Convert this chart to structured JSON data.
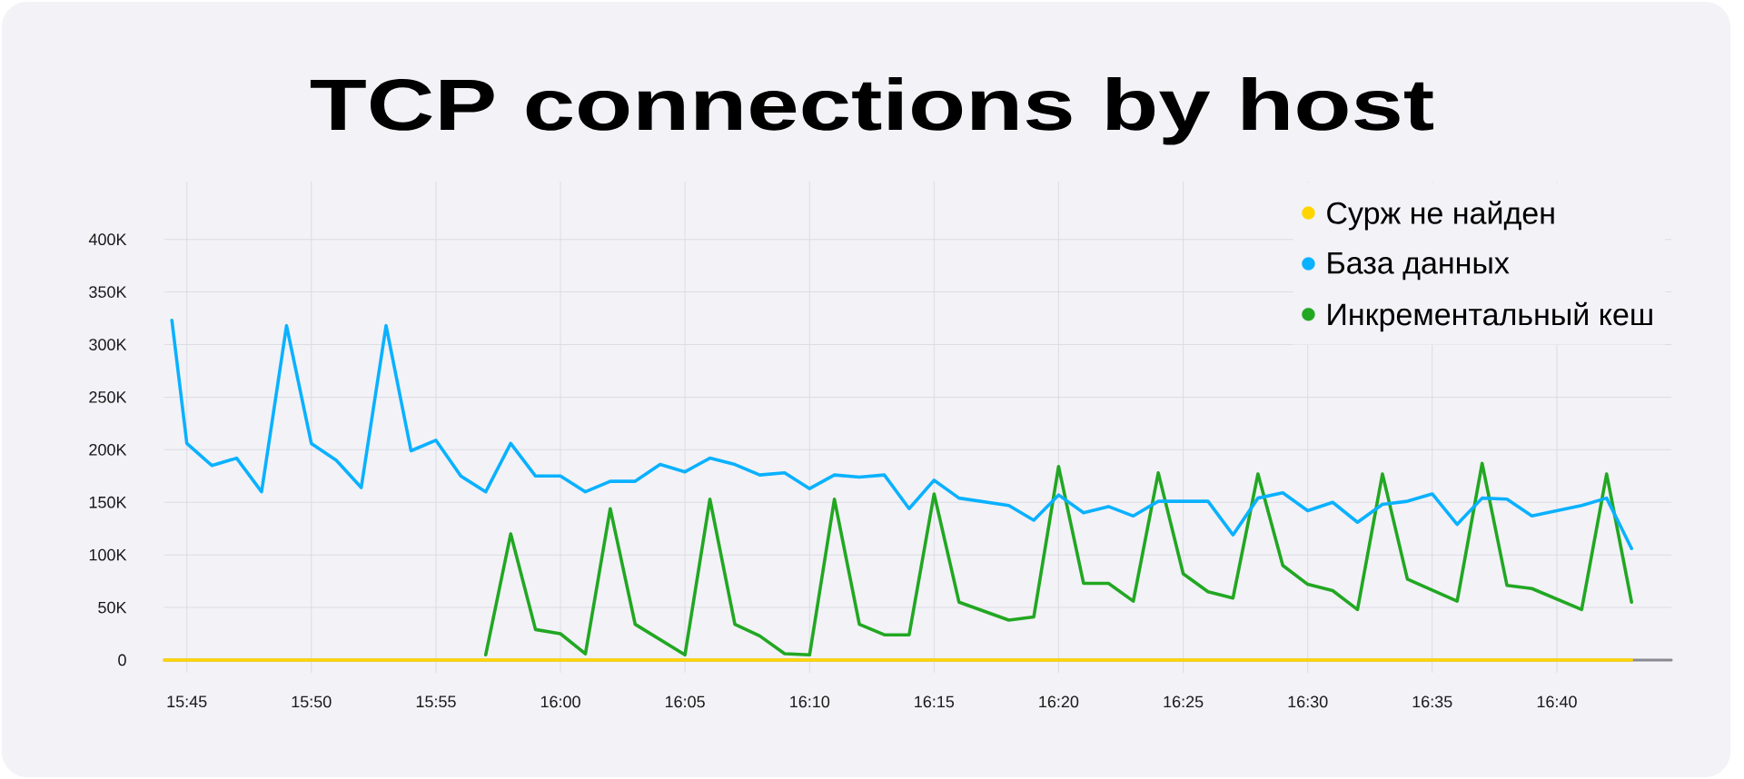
{
  "chart_data": {
    "type": "line",
    "title": "TCP connections by host",
    "series": [
      {
        "name": "Сурж не найден",
        "color": "#ffd500",
        "x": [
          15.735,
          16.7167
        ],
        "values": [
          0,
          0
        ]
      },
      {
        "name": "База данных",
        "color": "#0ab1ff",
        "x": [
          15.74,
          15.75,
          15.7667,
          15.7833,
          15.8,
          15.8167,
          15.8333,
          15.85,
          15.8667,
          15.8833,
          15.9,
          15.9167,
          15.9333,
          15.95,
          15.9667,
          15.9833,
          16,
          16.0167,
          16.0333,
          16.05,
          16.0667,
          16.0833,
          16.1,
          16.1167,
          16.1333,
          16.15,
          16.1667,
          16.1833,
          16.2,
          16.2167,
          16.2333,
          16.25,
          16.2667,
          16.3,
          16.3167,
          16.3333,
          16.35,
          16.3667,
          16.3833,
          16.4,
          16.4167,
          16.4333,
          16.45,
          16.4667,
          16.4833,
          16.5,
          16.5167,
          16.5333,
          16.55,
          16.5667,
          16.5833,
          16.6,
          16.6167,
          16.6333,
          16.65,
          16.6833,
          16.7,
          16.7167
        ],
        "values": [
          323000,
          206000,
          185000,
          192000,
          160000,
          318000,
          206000,
          190000,
          164000,
          318000,
          199000,
          209000,
          175000,
          160000,
          206000,
          175000,
          175000,
          160000,
          170000,
          170000,
          186000,
          179000,
          192000,
          186000,
          176000,
          178000,
          163000,
          176000,
          174000,
          176000,
          144000,
          171000,
          154000,
          147000,
          133000,
          157000,
          140000,
          146000,
          137000,
          151000,
          151000,
          151000,
          119000,
          154000,
          159000,
          142000,
          150000,
          131000,
          148000,
          151000,
          158000,
          129000,
          154000,
          153000,
          137000,
          147000,
          154000,
          106000
        ]
      },
      {
        "name": "Инкрементальный кеш",
        "color": "#22a722",
        "x": [
          15.95,
          15.9667,
          15.9833,
          16,
          16.0167,
          16.0333,
          16.05,
          16.0833,
          16.1,
          16.1167,
          16.1333,
          16.15,
          16.1667,
          16.1833,
          16.2,
          16.2167,
          16.2333,
          16.25,
          16.2667,
          16.3,
          16.3167,
          16.3333,
          16.35,
          16.3667,
          16.3833,
          16.4,
          16.4167,
          16.4333,
          16.45,
          16.4667,
          16.4833,
          16.5,
          16.5167,
          16.5333,
          16.55,
          16.5667,
          16.6,
          16.6167,
          16.6333,
          16.65,
          16.6833,
          16.7,
          16.7167
        ],
        "values": [
          5000,
          120000,
          29000,
          25000,
          6000,
          144000,
          34000,
          5000,
          153000,
          34000,
          23000,
          6000,
          5000,
          153000,
          34000,
          24000,
          24000,
          158000,
          55000,
          38000,
          41000,
          184000,
          73000,
          73000,
          56000,
          178000,
          82000,
          65000,
          59000,
          177000,
          90000,
          72000,
          66000,
          48000,
          177000,
          77000,
          56000,
          187000,
          71000,
          68000,
          48000,
          177000,
          55000
        ]
      }
    ],
    "xlim": [
      15.735,
      16.7433
    ],
    "ylim": [
      0,
      455000
    ],
    "xticks": [
      {
        "value": 15.75,
        "label": "15:45"
      },
      {
        "value": 15.8333,
        "label": "15:50"
      },
      {
        "value": 15.9167,
        "label": "15:55"
      },
      {
        "value": 16,
        "label": "16:00"
      },
      {
        "value": 16.0833,
        "label": "16:05"
      },
      {
        "value": 16.1667,
        "label": "16:10"
      },
      {
        "value": 16.25,
        "label": "16:15"
      },
      {
        "value": 16.3333,
        "label": "16:20"
      },
      {
        "value": 16.4167,
        "label": "16:25"
      },
      {
        "value": 16.5,
        "label": "16:30"
      },
      {
        "value": 16.5833,
        "label": "16:35"
      },
      {
        "value": 16.6667,
        "label": "16:40"
      }
    ],
    "yticks": [
      0,
      {
        "value": 50000,
        "label": "50K"
      },
      {
        "value": 100000,
        "label": "100K"
      },
      {
        "value": 150000,
        "label": "150K"
      },
      {
        "value": 200000,
        "label": "200K"
      },
      {
        "value": 250000,
        "label": "250K"
      },
      {
        "value": 300000,
        "label": "300K"
      },
      {
        "value": 350000,
        "label": "350K"
      },
      {
        "value": 400000,
        "label": "400K"
      }
    ],
    "grid": true,
    "legend": "top right"
  }
}
